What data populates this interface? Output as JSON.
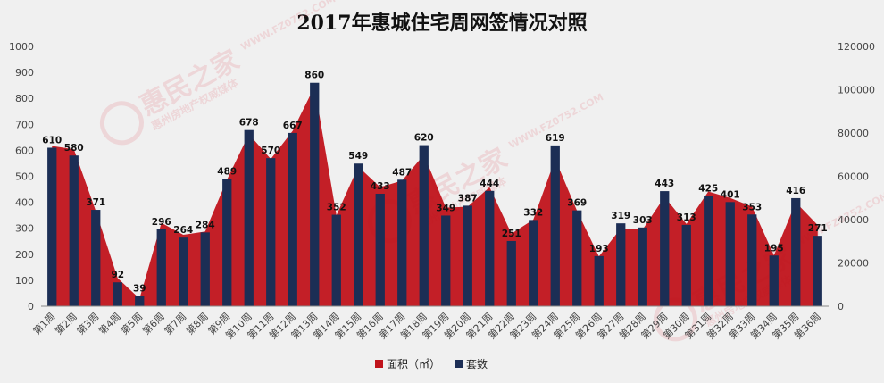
{
  "chart_data": {
    "type": "bar",
    "title": "2017年惠城住宅周网签情况对照",
    "categories": [
      "第1周",
      "第2周",
      "第3周",
      "第4周",
      "第5周",
      "第6周",
      "第7周",
      "第8周",
      "第9周",
      "第10周",
      "第11周",
      "第12周",
      "第13周",
      "第14周",
      "第15周",
      "第16周",
      "第17周",
      "第18周",
      "第19周",
      "第20周",
      "第21周",
      "第22周",
      "第23周",
      "第24周",
      "第25周",
      "第26周",
      "第27周",
      "第28周",
      "第29周",
      "第30周",
      "第31周",
      "第32周",
      "第33周",
      "第34周",
      "第35周",
      "第36周"
    ],
    "series": [
      {
        "name": "面积（㎡）",
        "kind": "area",
        "axis": "right",
        "color": "#c0131b",
        "values": [
          74000,
          72500,
          44000,
          13000,
          3500,
          38500,
          33000,
          34500,
          58500,
          79500,
          68000,
          81000,
          101500,
          42000,
          64500,
          55000,
          58000,
          70000,
          45500,
          46000,
          55000,
          33500,
          40000,
          68000,
          44000,
          23000,
          36000,
          35500,
          50500,
          38000,
          53000,
          50000,
          46000,
          23500,
          48000,
          37500
        ]
      },
      {
        "name": "套数",
        "kind": "bar",
        "axis": "left",
        "color": "#1c2e55",
        "values": [
          610,
          580,
          371,
          92,
          39,
          296,
          264,
          284,
          489,
          678,
          570,
          667,
          860,
          352,
          549,
          433,
          487,
          620,
          349,
          387,
          444,
          251,
          332,
          619,
          369,
          193,
          319,
          303,
          443,
          313,
          425,
          401,
          353,
          195,
          416,
          271
        ]
      }
    ],
    "data_labels": [
      "610",
      "580",
      "371",
      "92",
      "39",
      "296",
      "264",
      "284",
      "489",
      "678",
      "570",
      "667",
      "860",
      "352",
      "549",
      "433",
      "487",
      "620",
      "349",
      "387",
      "444",
      "251",
      "332",
      "619",
      "369",
      "193",
      "319",
      "303",
      "443",
      "313",
      "425",
      "401",
      "353",
      "195",
      "416",
      "271"
    ],
    "left_axis": {
      "min": 0,
      "max": 1000,
      "step": 100,
      "ticks": [
        "0",
        "100",
        "200",
        "300",
        "400",
        "500",
        "600",
        "700",
        "800",
        "900",
        "1000"
      ]
    },
    "right_axis": {
      "min": 0,
      "max": 120000,
      "step": 20000,
      "ticks": [
        "0",
        "20000",
        "40000",
        "60000",
        "80000",
        "100000",
        "120000"
      ]
    },
    "legend": {
      "position": "bottom",
      "items": [
        "面积（㎡）",
        "套数"
      ]
    },
    "grid": false
  },
  "watermark": {
    "brand": "惠民之家",
    "site": "WWW.FZ0752.COM",
    "tagline": "惠州房地产权威媒体"
  }
}
